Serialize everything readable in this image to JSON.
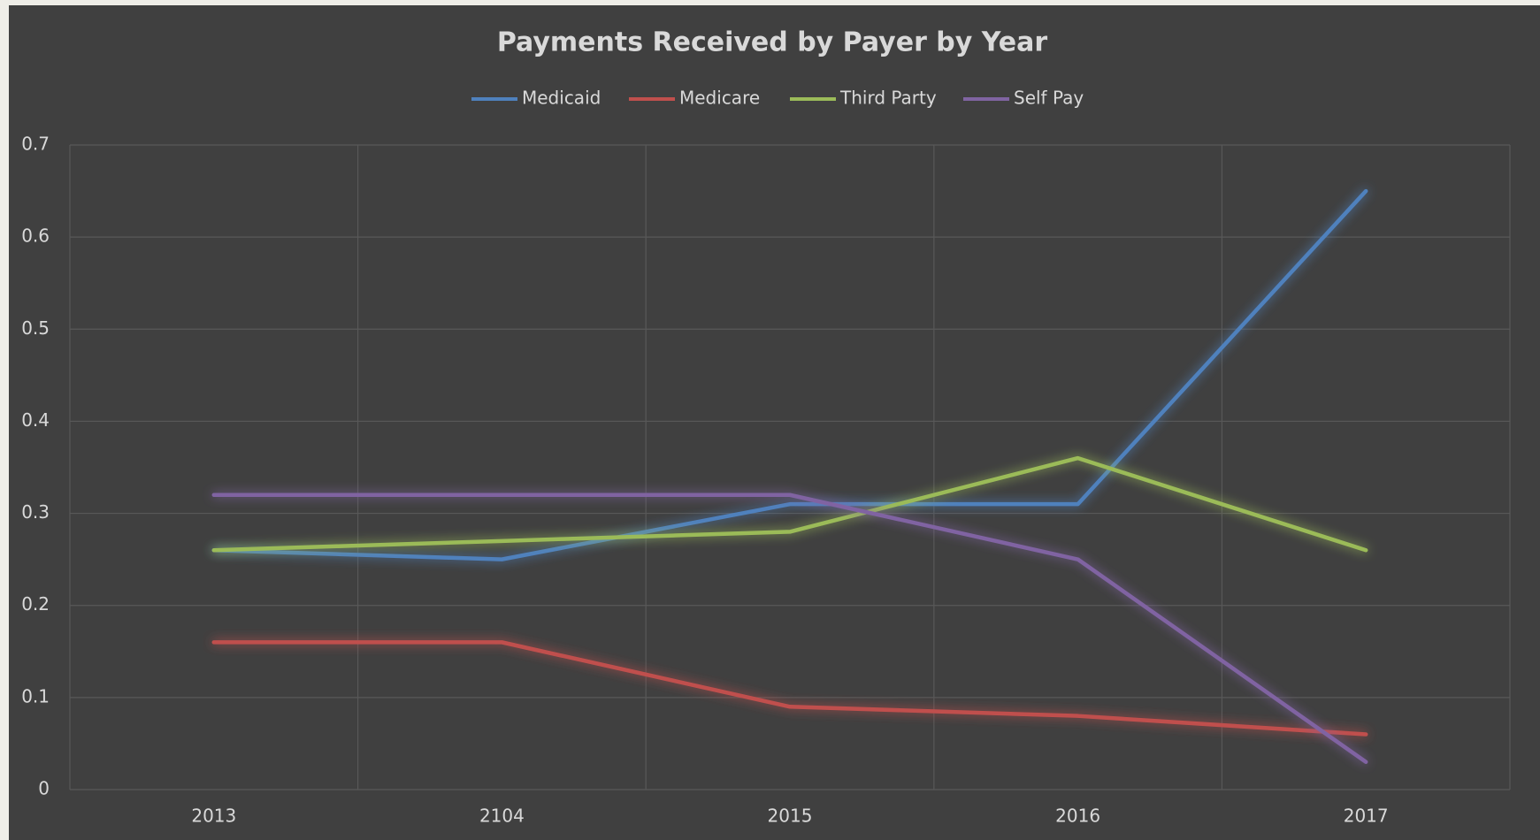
{
  "chart_data": {
    "type": "line",
    "title": "Payments Received by Payer by Year",
    "categories": [
      "2013",
      "2104",
      "2015",
      "2016",
      "2017"
    ],
    "series": [
      {
        "name": "Medicaid",
        "color": "#4f81bd",
        "values": [
          0.26,
          0.25,
          0.31,
          0.31,
          0.65
        ]
      },
      {
        "name": "Medicare",
        "color": "#c0504d",
        "values": [
          0.16,
          0.16,
          0.09,
          0.08,
          0.06
        ]
      },
      {
        "name": "Third Party",
        "color": "#9bbb59",
        "values": [
          0.26,
          0.27,
          0.28,
          0.36,
          0.26
        ]
      },
      {
        "name": "Self Pay",
        "color": "#8064a2",
        "values": [
          0.32,
          0.32,
          0.32,
          0.25,
          0.03
        ]
      }
    ],
    "ylim": [
      0,
      0.7
    ],
    "yticks": [
      0,
      0.1,
      0.2,
      0.3,
      0.4,
      0.5,
      0.6,
      0.7
    ],
    "grid": true,
    "legend": "top"
  }
}
